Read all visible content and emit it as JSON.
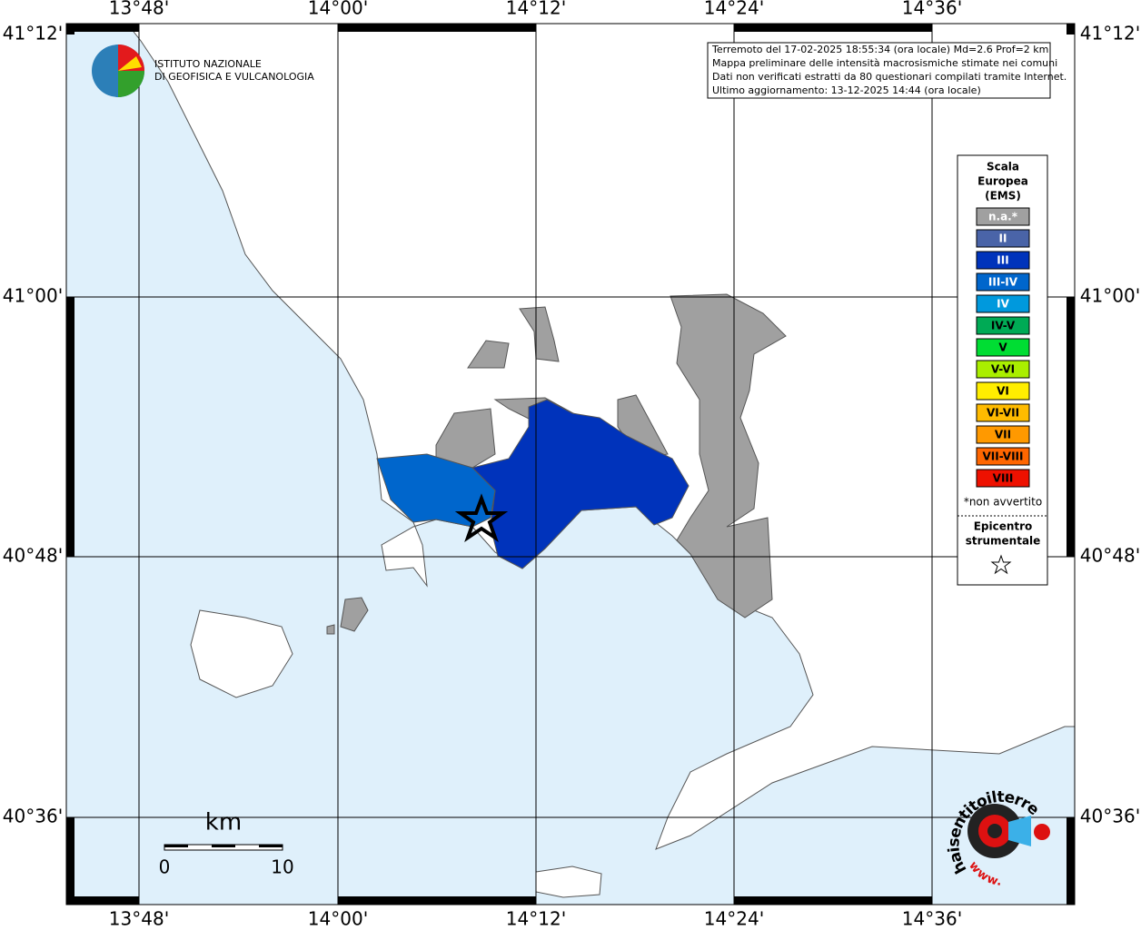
{
  "logo": {
    "line1": "ISTITUTO NAZIONALE",
    "line2": "DI GEOFISICA E VULCANOLOGIA"
  },
  "info": [
    "Terremoto del 17-02-2025 18:55:34 (ora locale) Md=2.6 Prof=2 km",
    "Mappa preliminare delle intensità macrosismiche stimate nei comuni",
    "Dati non verificati estratti da 80 questionari compilati tramite Internet.",
    "Ultimo aggiornamento: 13-12-2025 14:44 (ora locale)"
  ],
  "longitudes": [
    "13°48'",
    "14°00'",
    "14°12'",
    "14°24'",
    "14°36'"
  ],
  "latitudes": [
    "41°12'",
    "41°00'",
    "40°48'",
    "40°36'"
  ],
  "legend": {
    "title": [
      "Scala",
      "Europea",
      "(EMS)"
    ],
    "items": [
      {
        "label": "n.a.*",
        "color": "#a0a0a0"
      },
      {
        "label": "II",
        "color": "#4a64a8"
      },
      {
        "label": "III",
        "color": "#0033bb"
      },
      {
        "label": "III-IV",
        "color": "#0066cc"
      },
      {
        "label": "IV",
        "color": "#0099dd"
      },
      {
        "label": "IV-V",
        "color": "#00aa55"
      },
      {
        "label": "V",
        "color": "#00dd33"
      },
      {
        "label": "V-VI",
        "color": "#aaee00"
      },
      {
        "label": "VI",
        "color": "#ffee00"
      },
      {
        "label": "VI-VII",
        "color": "#ffbb00"
      },
      {
        "label": "VII",
        "color": "#ff9900"
      },
      {
        "label": "VII-VIII",
        "color": "#ff6600"
      },
      {
        "label": "VIII",
        "color": "#ee1100"
      }
    ],
    "note": "*non avvertito",
    "epicenter": [
      "Epicentro",
      "strumentale"
    ]
  },
  "scale": {
    "unit": "km",
    "start": "0",
    "end": "10"
  },
  "badge": {
    "site": "haisentitoilterremoto.it",
    "www": "www."
  }
}
